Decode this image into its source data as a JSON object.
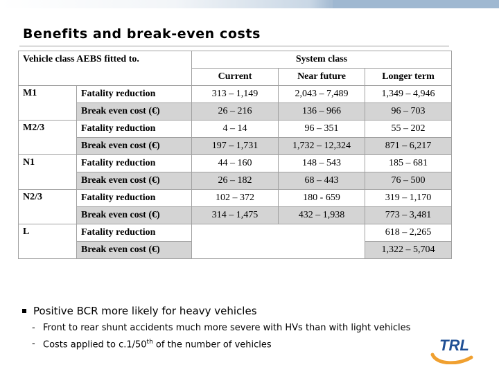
{
  "title": "Benefits and break-even costs",
  "table": {
    "corner_header": "Vehicle class AEBS fitted to.",
    "system_header": "System class",
    "columns": [
      "Current",
      "Near future",
      "Longer term"
    ],
    "rows": [
      {
        "vehicle": "M1",
        "label": "Fatality reduction",
        "values": [
          "313 – 1,149",
          "2,043 – 7,489",
          "1,349 – 4,946"
        ]
      },
      {
        "vehicle": "",
        "label": "Break even cost (€)",
        "values": [
          "26 – 216",
          "136 – 966",
          "96 – 703"
        ]
      },
      {
        "vehicle": "M2/3",
        "label": "Fatality reduction",
        "values": [
          "4 – 14",
          "96 – 351",
          "55 – 202"
        ]
      },
      {
        "vehicle": "",
        "label": "Break even cost (€)",
        "values": [
          "197 – 1,731",
          "1,732 – 12,324",
          "871 – 6,217"
        ]
      },
      {
        "vehicle": "N1",
        "label": "Fatality reduction",
        "values": [
          "44 – 160",
          "148 – 543",
          "185 – 681"
        ]
      },
      {
        "vehicle": "",
        "label": "Break even cost (€)",
        "values": [
          "26 – 182",
          "68 – 443",
          "76 – 500"
        ]
      },
      {
        "vehicle": "N2/3",
        "label": "Fatality reduction",
        "values": [
          "102 – 372",
          "180 - 659",
          "319 – 1,170"
        ]
      },
      {
        "vehicle": "",
        "label": "Break even cost (€)",
        "values": [
          "314 – 1,475",
          "432 – 1,938",
          "773 – 3,481"
        ]
      },
      {
        "vehicle": "L",
        "label": "Fatality reduction",
        "values": [
          "",
          "",
          "618 – 2,265"
        ]
      },
      {
        "vehicle": "",
        "label": "Break even cost (€)",
        "values": [
          "",
          "",
          "1,322 – 5,704"
        ]
      }
    ]
  },
  "bullets": {
    "main": "Positive BCR more likely for heavy vehicles",
    "sub1": "Front to rear shunt accidents much more severe with HVs than with light vehicles",
    "sub2_pre": "Costs applied to c.1/50",
    "sub2_sup": "th",
    "sub2_post": " of the number of vehicles"
  },
  "logo": {
    "text": "TRL",
    "colors": {
      "blue": "#1f4f94",
      "orange": "#f0a030"
    }
  }
}
